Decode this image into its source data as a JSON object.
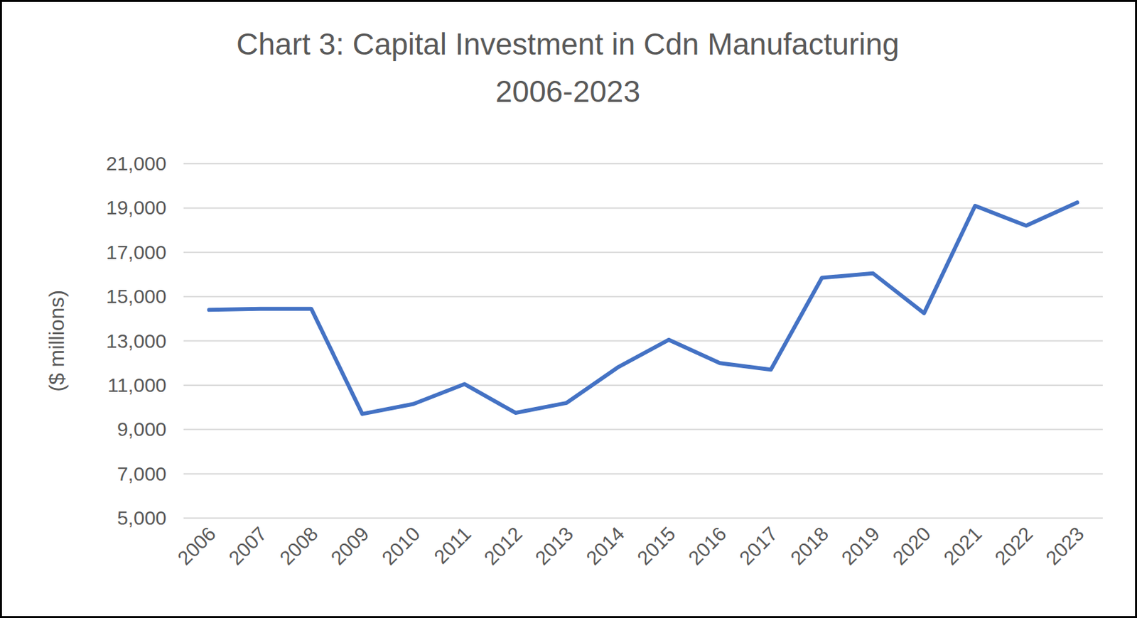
{
  "chart_data": {
    "type": "line",
    "title": "Chart 3: Capital Investment in Cdn Manufacturing\n2006-2023",
    "y_label": "($ millions)",
    "categories": [
      "2006",
      "2007",
      "2008",
      "2009",
      "2010",
      "2011",
      "2012",
      "2013",
      "2014",
      "2015",
      "2016",
      "2017",
      "2018",
      "2019",
      "2020",
      "2021",
      "2022",
      "2023"
    ],
    "values": [
      14400,
      14450,
      14450,
      9700,
      10150,
      11050,
      9750,
      10200,
      11800,
      13050,
      12000,
      11700,
      15850,
      16050,
      14250,
      19100,
      18200,
      19250
    ],
    "color": "#4472c4",
    "ylim": [
      5000,
      21000
    ],
    "yticks": [
      {
        "value": 5000,
        "label": "5,000"
      },
      {
        "value": 7000,
        "label": "7,000"
      },
      {
        "value": 9000,
        "label": "9,000"
      },
      {
        "value": 11000,
        "label": "11,000"
      },
      {
        "value": 13000,
        "label": "13,000"
      },
      {
        "value": 15000,
        "label": "15,000"
      },
      {
        "value": 17000,
        "label": "17,000"
      },
      {
        "value": 19000,
        "label": "19,000"
      },
      {
        "value": 21000,
        "label": "21,000"
      }
    ],
    "grid": true
  }
}
